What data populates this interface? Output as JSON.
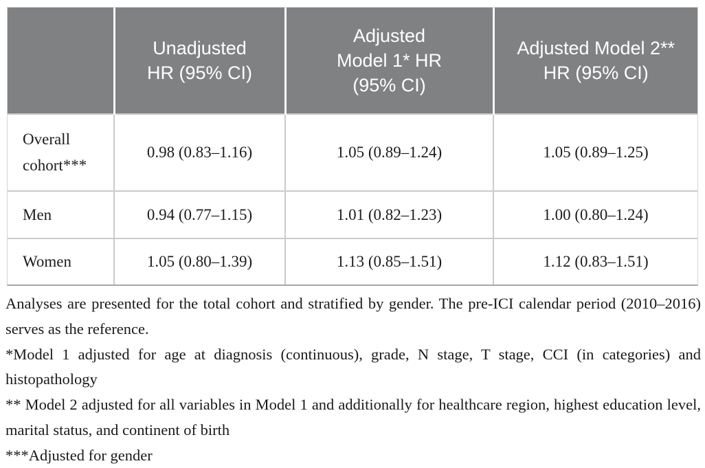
{
  "table": {
    "header": {
      "cells": [
        "",
        "Unadjusted HR (95% CI)",
        "Adjusted Model 1* HR (95% CI)",
        "Adjusted Model 2** HR (95% CI)"
      ]
    },
    "rows": [
      {
        "label": "Overall cohort***",
        "values": [
          "0.98 (0.83–1.16)",
          "1.05 (0.89–1.24)",
          "1.05 (0.89–1.25)"
        ]
      },
      {
        "label": "Men",
        "values": [
          "0.94 (0.77–1.15)",
          "1.01 (0.82–1.23)",
          "1.00 (0.80–1.24)"
        ]
      },
      {
        "label": "Women",
        "values": [
          "1.05 (0.80–1.39)",
          "1.13 (0.85–1.51)",
          "1.12 (0.83–1.51)"
        ]
      }
    ]
  },
  "footnotes": [
    "Analyses are presented for the total cohort and stratified by gender. The pre-ICI calendar period (2010–2016) serves as the reference.",
    "*Model 1 adjusted for age at diagnosis (continuous), grade, N stage, T stage, CCI (in categories) and histopathology",
    "** Model 2 adjusted for all variables in Model 1 and additionally for healthcare region, highest education level, marital status, and continent of birth",
    "***Adjusted for gender"
  ],
  "colors": {
    "header_bg": "#7f8183",
    "header_text": "#ffffff",
    "grid_line": "#cbcbcb",
    "body_text": "#1c1c1c"
  }
}
